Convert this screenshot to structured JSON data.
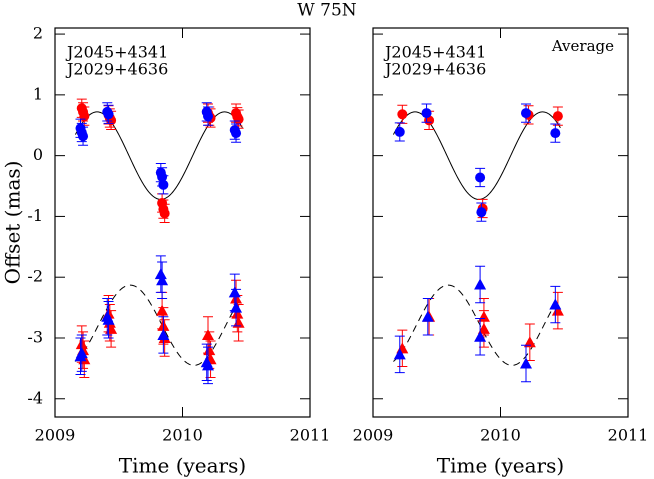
{
  "title": "W 75N",
  "chart_data": [
    {
      "type": "scatter",
      "ylabel": "Offset (mas)",
      "xlabel": "Time (years)",
      "xlim": [
        2009,
        2011
      ],
      "ylim": [
        -4.3,
        2.1
      ],
      "xticks": [
        2009,
        2010,
        2011
      ],
      "yticks": [
        -4,
        -3,
        -2,
        -1,
        0,
        1,
        2
      ],
      "show_ytick_labels": true,
      "series": [
        {
          "name": "J2045+4341",
          "color": "#ff0000",
          "marker": "circle",
          "x": [
            2009.21,
            2009.22,
            2009.23,
            2009.42,
            2009.43,
            2009.44,
            2009.84,
            2009.85,
            2009.86,
            2010.2,
            2010.21,
            2010.22,
            2010.42,
            2010.43,
            2010.44
          ],
          "values": [
            0.78,
            0.72,
            0.65,
            0.67,
            0.62,
            0.58,
            -0.78,
            -0.88,
            -0.95,
            0.7,
            0.65,
            0.62,
            0.7,
            0.64,
            0.6
          ],
          "errors": [
            0.15,
            0.15,
            0.15,
            0.15,
            0.15,
            0.15,
            0.15,
            0.15,
            0.15,
            0.15,
            0.15,
            0.15,
            0.15,
            0.15,
            0.15
          ]
        },
        {
          "name": "J2029+4636",
          "color": "#0000ff",
          "marker": "circle",
          "x": [
            2009.2,
            2009.21,
            2009.22,
            2009.41,
            2009.42,
            2009.83,
            2009.84,
            2009.85,
            2010.19,
            2010.2,
            2010.41,
            2010.42
          ],
          "values": [
            0.45,
            0.38,
            0.32,
            0.72,
            0.68,
            -0.28,
            -0.35,
            -0.48,
            0.72,
            0.65,
            0.42,
            0.37
          ],
          "errors": [
            0.15,
            0.15,
            0.15,
            0.15,
            0.15,
            0.15,
            0.15,
            0.15,
            0.15,
            0.15,
            0.15,
            0.15
          ]
        },
        {
          "color": "#ff0000",
          "marker": "triangle",
          "x": [
            2009.21,
            2009.22,
            2009.23,
            2009.42,
            2009.43,
            2009.44,
            2009.84,
            2009.85,
            2009.86,
            2010.2,
            2010.21,
            2010.22,
            2010.42,
            2010.43,
            2010.44
          ],
          "values": [
            -3.1,
            -3.2,
            -3.35,
            -2.6,
            -2.75,
            -2.85,
            -2.55,
            -2.8,
            -3.0,
            -2.95,
            -3.2,
            -3.35,
            -2.35,
            -2.6,
            -2.75
          ],
          "errors": [
            0.3,
            0.3,
            0.3,
            0.3,
            0.3,
            0.3,
            0.3,
            0.3,
            0.3,
            0.3,
            0.3,
            0.3,
            0.3,
            0.3,
            0.3
          ]
        },
        {
          "color": "#0000ff",
          "marker": "triangle",
          "x": [
            2009.2,
            2009.21,
            2009.41,
            2009.42,
            2009.83,
            2009.84,
            2009.85,
            2010.19,
            2010.2,
            2010.41,
            2010.42
          ],
          "values": [
            -3.3,
            -3.25,
            -2.65,
            -2.7,
            -1.95,
            -2.05,
            -2.95,
            -3.4,
            -3.45,
            -2.25,
            -2.5
          ],
          "errors": [
            0.3,
            0.3,
            0.3,
            0.3,
            0.3,
            0.3,
            0.3,
            0.3,
            0.3,
            0.3,
            0.3
          ]
        }
      ],
      "curves": [
        {
          "amplitude": 0.72,
          "offset": 0,
          "peak": 2009.33,
          "period": 1,
          "tmin": 2009.16,
          "tmax": 2010.47,
          "dashed": false
        },
        {
          "amplitude": 0.66,
          "offset": -2.79,
          "peak": 2009.59,
          "period": 1,
          "tmin": 2009.16,
          "tmax": 2010.44,
          "dashed": true
        }
      ]
    },
    {
      "type": "scatter",
      "xlabel": "Time (years)",
      "annotation": "Average",
      "xlim": [
        2009,
        2011
      ],
      "ylim": [
        -4.3,
        2.1
      ],
      "xticks": [
        2009,
        2010,
        2011
      ],
      "yticks": [
        -4,
        -3,
        -2,
        -1,
        0,
        1,
        2
      ],
      "show_ytick_labels": false,
      "series": [
        {
          "name": "J2045+4341",
          "color": "#ff0000",
          "marker": "circle",
          "x": [
            2009.23,
            2009.44,
            2009.86,
            2010.22,
            2010.45
          ],
          "values": [
            0.68,
            0.58,
            -0.87,
            0.67,
            0.65
          ],
          "errors": [
            0.15,
            0.15,
            0.15,
            0.15,
            0.15
          ]
        },
        {
          "name": "J2029+4636",
          "color": "#0000ff",
          "marker": "circle",
          "x": [
            2009.21,
            2009.42,
            2009.84,
            2009.85,
            2010.2,
            2010.43
          ],
          "values": [
            0.39,
            0.7,
            -0.36,
            -0.93,
            0.7,
            0.37
          ],
          "errors": [
            0.15,
            0.15,
            0.15,
            0.15,
            0.15,
            0.15
          ]
        },
        {
          "color": "#ff0000",
          "marker": "triangle",
          "x": [
            2009.23,
            2009.44,
            2009.87,
            2009.87,
            2010.23,
            2010.45
          ],
          "values": [
            -3.17,
            -2.65,
            -2.65,
            -2.85,
            -3.07,
            -2.55
          ],
          "errors": [
            0.3,
            0.3,
            0.3,
            0.3,
            0.3,
            0.3
          ]
        },
        {
          "color": "#0000ff",
          "marker": "triangle",
          "x": [
            2009.21,
            2009.43,
            2009.84,
            2009.84,
            2010.2,
            2010.43
          ],
          "values": [
            -3.27,
            -2.65,
            -2.12,
            -2.98,
            -3.42,
            -2.45
          ],
          "errors": [
            0.3,
            0.3,
            0.3,
            0.3,
            0.3,
            0.3
          ]
        }
      ],
      "curves": [
        {
          "amplitude": 0.72,
          "offset": 0,
          "peak": 2009.33,
          "period": 1,
          "tmin": 2009.16,
          "tmax": 2010.47,
          "dashed": false
        },
        {
          "amplitude": 0.66,
          "offset": -2.79,
          "peak": 2009.59,
          "period": 1,
          "tmin": 2009.16,
          "tmax": 2010.44,
          "dashed": true
        }
      ]
    }
  ]
}
